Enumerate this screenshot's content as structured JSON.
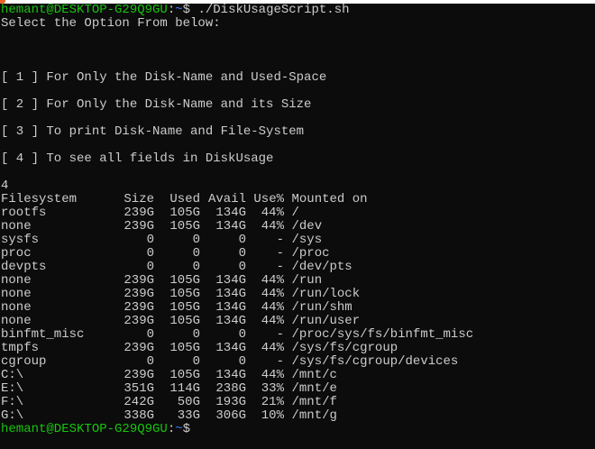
{
  "prompt": {
    "user_host": "hemant@DESKTOP-G29Q9GU",
    "sep": ":",
    "path": "~",
    "symbol": "$"
  },
  "command": " ./DiskUsageScript.sh",
  "intro": "Select the Option From below:",
  "options": [
    "[ 1 ] For Only the Disk-Name and Used-Space",
    "[ 2 ] For Only the Disk-Name and its Size",
    "[ 3 ] To print Disk-Name and File-System",
    "[ 4 ] To see all fields in DiskUsage"
  ],
  "user_input": "4",
  "df": {
    "headers": [
      "Filesystem",
      "Size",
      "Used",
      "Avail",
      "Use%",
      "Mounted on"
    ],
    "rows": [
      [
        "rootfs",
        "239G",
        "105G",
        "134G",
        "44%",
        "/"
      ],
      [
        "none",
        "239G",
        "105G",
        "134G",
        "44%",
        "/dev"
      ],
      [
        "sysfs",
        "0",
        "0",
        "0",
        "-",
        "/sys"
      ],
      [
        "proc",
        "0",
        "0",
        "0",
        "-",
        "/proc"
      ],
      [
        "devpts",
        "0",
        "0",
        "0",
        "-",
        "/dev/pts"
      ],
      [
        "none",
        "239G",
        "105G",
        "134G",
        "44%",
        "/run"
      ],
      [
        "none",
        "239G",
        "105G",
        "134G",
        "44%",
        "/run/lock"
      ],
      [
        "none",
        "239G",
        "105G",
        "134G",
        "44%",
        "/run/shm"
      ],
      [
        "none",
        "239G",
        "105G",
        "134G",
        "44%",
        "/run/user"
      ],
      [
        "binfmt_misc",
        "0",
        "0",
        "0",
        "-",
        "/proc/sys/fs/binfmt_misc"
      ],
      [
        "tmpfs",
        "239G",
        "105G",
        "134G",
        "44%",
        "/sys/fs/cgroup"
      ],
      [
        "cgroup",
        "0",
        "0",
        "0",
        "-",
        "/sys/fs/cgroup/devices"
      ],
      [
        "C:\\",
        "239G",
        "105G",
        "134G",
        "44%",
        "/mnt/c"
      ],
      [
        "E:\\",
        "351G",
        "114G",
        "238G",
        "33%",
        "/mnt/e"
      ],
      [
        "F:\\",
        "242G",
        "50G",
        "193G",
        "21%",
        "/mnt/f"
      ],
      [
        "G:\\",
        "338G",
        "33G",
        "306G",
        "10%",
        "/mnt/g"
      ]
    ]
  },
  "colors": {
    "background": "#0c0c0c",
    "text": "#cccccc",
    "prompt_user": "#16c60c",
    "prompt_path": "#3b78ff"
  }
}
